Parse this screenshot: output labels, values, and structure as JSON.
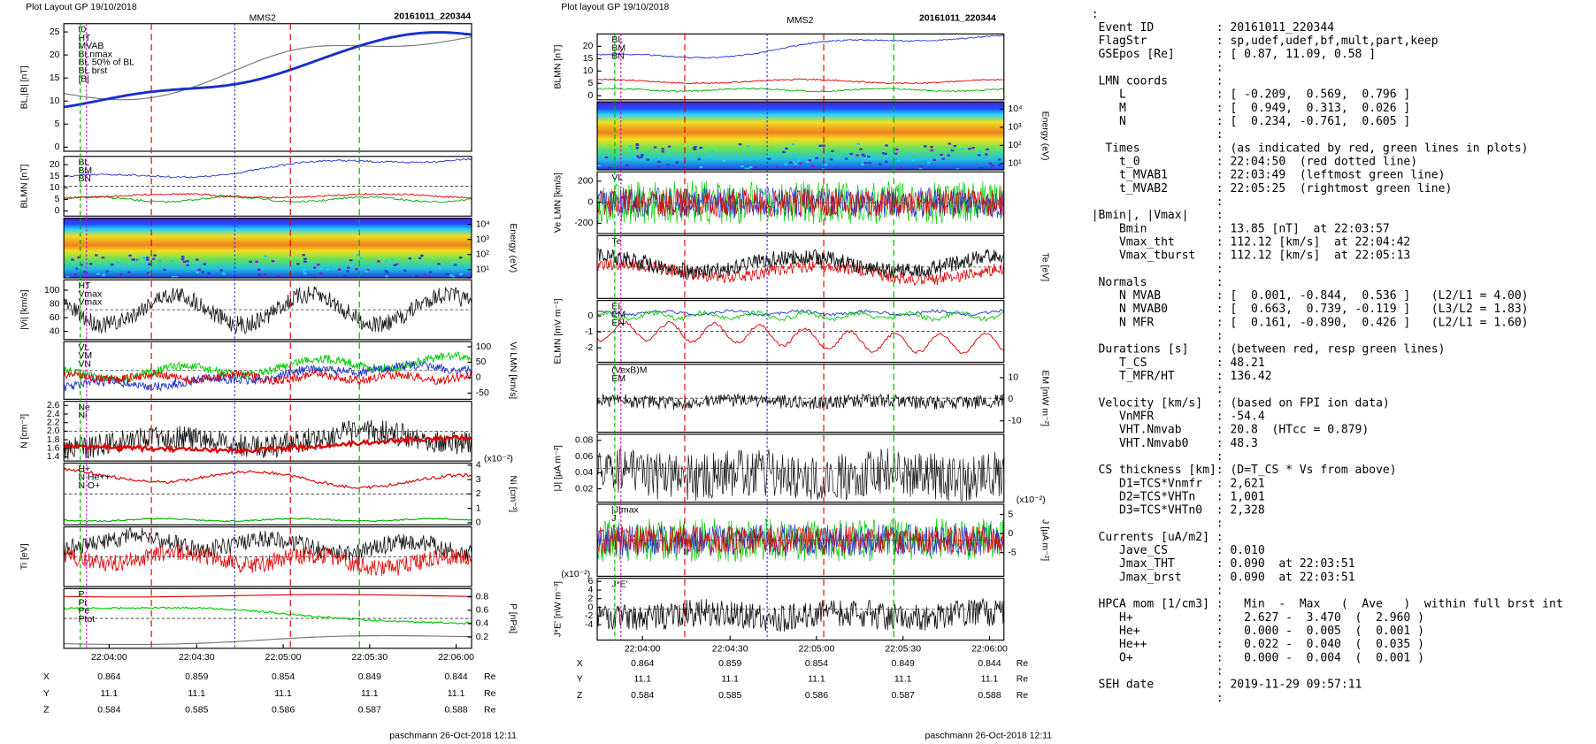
{
  "left_plot": {
    "header": "Plot Layout GP 19/10/2018",
    "title": "MMS2",
    "event": "20161011_220344",
    "panels": [
      {
        "ylabel": "BL,|B| [nT]",
        "yticks": [
          "25",
          "20",
          "15",
          "10",
          "5",
          "0"
        ],
        "legend": [
          {
            "text": "t0",
            "color": "#d00"
          },
          {
            "text": "HT",
            "color": "#0a0"
          },
          {
            "text": "MVAB",
            "color": "#0a0"
          },
          {
            "text": "BLnmax",
            "color": "#0a0"
          },
          {
            "text": "BL 50% of BL",
            "color": "#23c"
          },
          {
            "text": "BL brst",
            "color": "#23c"
          },
          {
            "text": "|B|",
            "color": "#666"
          }
        ]
      },
      {
        "ylabel": "BLMN [nT]",
        "yticks": [
          "20",
          "15",
          "10",
          "5",
          "0"
        ],
        "legend": [
          {
            "text": "BL",
            "color": "#23c"
          },
          {
            "text": "BM",
            "color": "#0a0"
          },
          {
            "text": "BN",
            "color": "#d00"
          }
        ]
      },
      {
        "ylabel": "Energy (eV)",
        "yticks": [
          "10⁴",
          "10³",
          "10²",
          "10¹"
        ],
        "legend": []
      },
      {
        "ylabel": "|Vi| [km/s]",
        "yticks": [
          "100",
          "80",
          "60",
          "40"
        ],
        "legend": [
          {
            "text": "HT",
            "color": "#0a0"
          },
          {
            "text": "Vmax",
            "color": "#23c"
          },
          {
            "text": "Vmax",
            "color": "#23c"
          }
        ]
      },
      {
        "ylabel": "Vi LMN [km/s]",
        "yticks": [
          "100",
          "50",
          "0",
          "-50"
        ],
        "legend": [
          {
            "text": "VL",
            "color": "#23c"
          },
          {
            "text": "VM",
            "color": "#0a0"
          },
          {
            "text": "VN",
            "color": "#d00"
          }
        ]
      },
      {
        "ylabel": "N [cm⁻³]",
        "yticks": [
          "2.6",
          "2.4",
          "2.2",
          "2.0",
          "1.8",
          "1.6",
          "1.4"
        ],
        "legend": [
          {
            "text": "Ne",
            "color": "#d00"
          },
          {
            "text": "Ni",
            "color": "#444"
          }
        ]
      },
      {
        "ylabel": "Ni [cm⁻³]",
        "yticks": [
          "4",
          "3",
          "2",
          "1",
          "0"
        ],
        "multiplier": "(x10⁻²)",
        "legend": [
          {
            "text": "H+",
            "color": "#0a0"
          },
          {
            "text": "N  He++",
            "color": "#d00"
          },
          {
            "text": "N  O+",
            "color": "#23c"
          }
        ]
      },
      {
        "ylabel": "Ti [eV]",
        "yticks": [],
        "legend": []
      },
      {
        "ylabel": "P [nPa]",
        "yticks": [
          "0.8",
          "0.6",
          "0.4",
          "0.2"
        ],
        "legend": [
          {
            "text": "P",
            "color": "#d00"
          },
          {
            "text": "Pi",
            "color": "#0a0"
          },
          {
            "text": "Pe",
            "color": "#666"
          },
          {
            "text": "Ptot",
            "color": "#23c"
          }
        ]
      }
    ],
    "xticks": [
      "22:04:00",
      "22:04:30",
      "22:05:00",
      "22:05:30",
      "22:06:00"
    ],
    "positions": [
      {
        "label": "X",
        "values": [
          "0.864",
          "0.859",
          "0.854",
          "0.849",
          "0.844"
        ],
        "unit": "Re"
      },
      {
        "label": "Y",
        "values": [
          "11.1",
          "11.1",
          "11.1",
          "11.1",
          "11.1"
        ],
        "unit": "Re"
      },
      {
        "label": "Z",
        "values": [
          "0.584",
          "0.585",
          "0.586",
          "0.587",
          "0.588"
        ],
        "unit": "Re"
      }
    ],
    "footer": "paschmann 26-Oct-2018 12:11"
  },
  "right_plot": {
    "header": "Plot layout GP 19/10/2018",
    "title": "MMS2",
    "event": "20161011_220344",
    "panels": [
      {
        "ylabel": "BLMN [nT]",
        "yticks": [
          "20",
          "15",
          "10",
          "5",
          "0"
        ],
        "legend": [
          {
            "text": "BL",
            "color": "#23c"
          },
          {
            "text": "BM",
            "color": "#0a0"
          },
          {
            "text": "BN",
            "color": "#d00"
          }
        ]
      },
      {
        "ylabel": "Energy (eV)",
        "yticks": [
          "10⁴",
          "10³",
          "10²",
          "10¹"
        ],
        "legend": []
      },
      {
        "ylabel": "Ve LMN [km/s]",
        "yticks": [
          "200",
          "0",
          "-200"
        ],
        "legend": [
          {
            "text": "VL",
            "color": "#23c"
          }
        ]
      },
      {
        "ylabel": "Te [eV]",
        "yticks": [],
        "legend": [
          {
            "text": "Te",
            "color": "#d00"
          }
        ]
      },
      {
        "ylabel": "ELMN [mV m⁻¹]",
        "yticks": [
          "0",
          "-1",
          "-2"
        ],
        "legend": [
          {
            "text": "EL",
            "color": "#23c"
          },
          {
            "text": "EM",
            "color": "#0a0"
          },
          {
            "text": "EN",
            "color": "#d00"
          }
        ]
      },
      {
        "ylabel": "EM [mW m⁻²]",
        "yticks": [
          "10",
          "0",
          "-10"
        ],
        "legend": [
          {
            "text": "(VexB)M",
            "color": "#000"
          },
          {
            "text": "EM",
            "color": "#0a0"
          }
        ]
      },
      {
        "ylabel": "|J| [μA m⁻²]",
        "yticks": [
          "0.08",
          "0.06",
          "0.04",
          "0.02"
        ],
        "legend": []
      },
      {
        "ylabel": "J [μA m⁻²]",
        "yticks": [
          "5",
          "0",
          "-5"
        ],
        "multiplier": "(x10⁻²)",
        "legend": [
          {
            "text": "|J|max",
            "color": "#c0c"
          },
          {
            "text": "J",
            "color": "#23c"
          }
        ]
      },
      {
        "ylabel": "J*E' [nW m⁻³]",
        "yticks": [
          "6",
          "4",
          "2",
          "0",
          "-2",
          "-4"
        ],
        "multiplier": "(x10⁻²)",
        "legend": [
          {
            "text": "J*E'",
            "color": "#000"
          }
        ]
      }
    ],
    "xticks": [
      "22:04:00",
      "22:04:30",
      "22:05:00",
      "22:05:30",
      "22:06:00"
    ],
    "positions": [
      {
        "label": "X",
        "values": [
          "0.864",
          "0.859",
          "0.854",
          "0.849",
          "0.844"
        ],
        "unit": "Re"
      },
      {
        "label": "Y",
        "values": [
          "11.1",
          "11.1",
          "11.1",
          "11.1",
          "11.1"
        ],
        "unit": "Re"
      },
      {
        "label": "Z",
        "values": [
          "0.584",
          "0.585",
          "0.586",
          "0.587",
          "0.588"
        ],
        "unit": "Re"
      }
    ],
    "footer": "paschmann 26-Oct-2018 12:11"
  },
  "event_info": {
    "lines": [
      ":",
      " Event ID         : 20161011_220344",
      " FlagStr          : sp,udef,udef,bf,mult,part,keep",
      " GSEpos [Re]      : [ 0.87, 11.09, 0.58 ]",
      "                  :",
      " LMN coords       :",
      "    L             : [ -0.209,  0.569,  0.796 ]",
      "    M             : [  0.949,  0.313,  0.026 ]",
      "    N             : [  0.234, -0.761,  0.605 ]",
      "                  :",
      "  Times           : (as indicated by red, green lines in plots)",
      "    t_0           : 22:04:50  (red dotted line)",
      "    t_MVAB1       : 22:03:49  (leftmost green line)",
      "    t_MVAB2       : 22:05:25  (rightmost green line)",
      "                  :",
      "|Bmin|, |Vmax|    :",
      "    Bmin          : 13.85 [nT]  at 22:03:57",
      "    Vmax_tht      : 112.12 [km/s]  at 22:04:42",
      "    Vmax_tburst   : 112.12 [km/s]  at 22:05:13",
      "                  :",
      " Normals          :",
      "    N MVAB        : [  0.001, -0.844,  0.536 ]   (L2/L1 = 4.00)",
      "    N MVAB0       : [  0.663,  0.739, -0.119 ]   (L3/L2 = 1.83)",
      "    N MFR         : [  0.161, -0.890,  0.426 ]   (L2/L1 = 1.60)",
      "                  :",
      " Durations [s]    : (between red, resp green lines)",
      "    T_CS          : 48.21",
      "    T_MFR/HT      : 136.42",
      "                  :",
      " Velocity [km/s]  : (based on FPI ion data)",
      "    VnMFR         : -54.4",
      "    VHT.Nmvab     : 20.8  (HTcc = 0.879)",
      "    VHT.Nmvab0    : 48.3",
      "                  :",
      " CS thickness [km]: (D=T_CS * Vs from above)",
      "    D1=TCS*Vnmfr  : 2,621",
      "    D2=TCS*VHTn   : 1,001",
      "    D3=TCS*VHTn0  : 2,328",
      "                  :",
      " Currents [uA/m2] :",
      "    Jave_CS       : 0.010",
      "    Jmax_THT      : 0.090  at 22:03:51",
      "    Jmax_brst     : 0.090  at 22:03:51",
      "                  :",
      " HPCA mom [1/cm3] :   Min  -  Max   (  Ave   )  within full brst int",
      "    H+            :   2.627 -  3.470  (  2.960 )",
      "    He+           :   0.000 -  0.005  (  0.001 )",
      "    He++          :   0.022 -  0.040  (  0.035 )",
      "    O+            :   0.000 -  0.004  (  0.001 )",
      "                  :",
      " SEH date         : 2019-11-29 09:57:11",
      "                  :"
    ]
  }
}
